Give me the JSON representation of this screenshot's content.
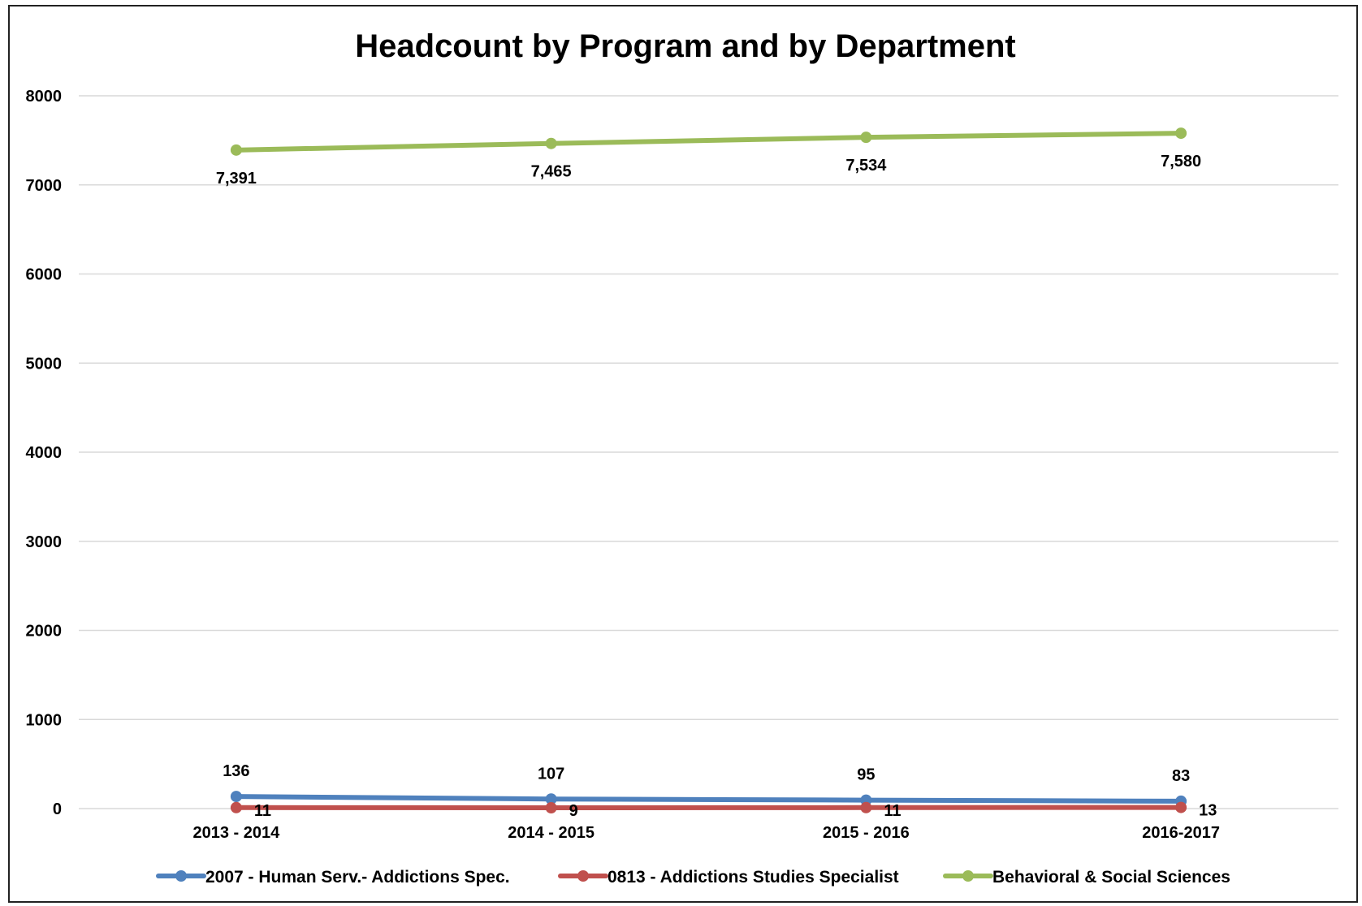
{
  "chart_data": {
    "type": "line",
    "title": "Headcount by Program and by Department",
    "xlabel": "",
    "ylabel": "",
    "categories": [
      "2013 - 2014",
      "2014 - 2015",
      "2015 - 2016",
      "2016-2017"
    ],
    "ylim": [
      0,
      8000
    ],
    "yticks": [
      0,
      1000,
      2000,
      3000,
      4000,
      5000,
      6000,
      7000,
      8000
    ],
    "grid": true,
    "legend_position": "bottom",
    "series": [
      {
        "name": "2007 - Human Serv.- Addictions Spec.",
        "color": "#4F81BD",
        "values": [
          136,
          107,
          95,
          83
        ],
        "labels": [
          "136",
          "107",
          "95",
          "83"
        ],
        "label_position": "above"
      },
      {
        "name": "0813 - Addictions Studies Specialist",
        "color": "#C0504D",
        "values": [
          11,
          9,
          11,
          13
        ],
        "labels": [
          "11",
          "9",
          "11",
          "13"
        ],
        "label_position": "right"
      },
      {
        "name": "Behavioral & Social Sciences",
        "color": "#9BBB59",
        "values": [
          7391,
          7465,
          7534,
          7580
        ],
        "labels": [
          "7,391",
          "7,465",
          "7,534",
          "7,580"
        ],
        "label_position": "below"
      }
    ]
  }
}
